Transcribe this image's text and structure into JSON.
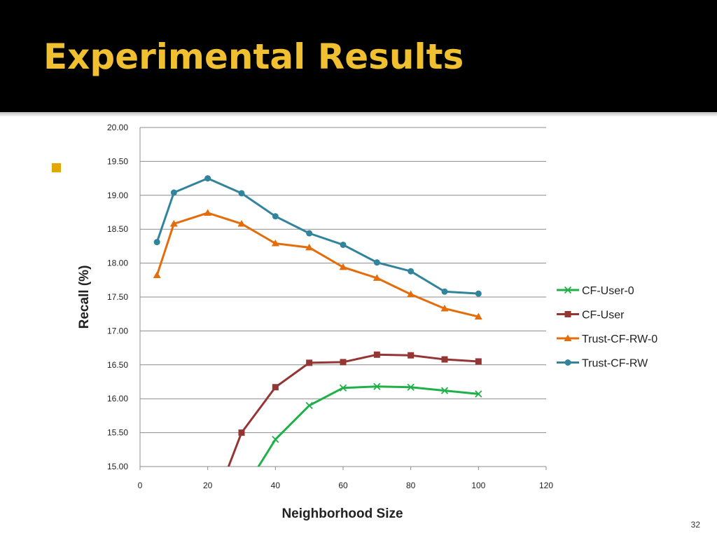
{
  "slide": {
    "title": "Experimental Results",
    "page_number": "32",
    "title_color": "#f0c030",
    "bullet_color": "#e0a800"
  },
  "chart_data": {
    "type": "line",
    "xlabel": "Neighborhood Size",
    "ylabel": "Recall (%)",
    "xlim": [
      0,
      120
    ],
    "ylim": [
      15.0,
      20.0
    ],
    "x_ticks": [
      "0",
      "20",
      "40",
      "60",
      "80",
      "100",
      "120"
    ],
    "y_ticks": [
      "15.00",
      "15.50",
      "16.00",
      "16.50",
      "17.00",
      "17.50",
      "18.00",
      "18.50",
      "19.00",
      "19.50",
      "20.00"
    ],
    "grid": "horizontal",
    "legend_position": "right",
    "series": [
      {
        "name": "CF-User-0",
        "color": "#20b04a",
        "marker": "x",
        "x": [
          30,
          40,
          50,
          60,
          70,
          80,
          90,
          100
        ],
        "y": [
          14.6,
          15.4,
          15.9,
          16.16,
          16.18,
          16.17,
          16.12,
          16.07
        ]
      },
      {
        "name": "CF-User",
        "color": "#943634",
        "marker": "square",
        "x": [
          20,
          30,
          40,
          50,
          60,
          70,
          80,
          90,
          100
        ],
        "y": [
          14.2,
          15.5,
          16.17,
          16.53,
          16.54,
          16.65,
          16.64,
          16.58,
          16.55
        ]
      },
      {
        "name": "Trust-CF-RW-0",
        "color": "#e46c0a",
        "marker": "triangle",
        "x": [
          5,
          10,
          20,
          30,
          40,
          50,
          60,
          70,
          80,
          90,
          100
        ],
        "y": [
          17.82,
          18.58,
          18.74,
          18.58,
          18.29,
          18.23,
          17.94,
          17.78,
          17.54,
          17.33,
          17.21
        ]
      },
      {
        "name": "Trust-CF-RW",
        "color": "#31849b",
        "marker": "circle",
        "x": [
          5,
          10,
          20,
          30,
          40,
          50,
          60,
          70,
          80,
          90,
          100
        ],
        "y": [
          18.31,
          19.04,
          19.25,
          19.03,
          18.69,
          18.44,
          18.27,
          18.01,
          17.88,
          17.58,
          17.55
        ]
      }
    ]
  }
}
